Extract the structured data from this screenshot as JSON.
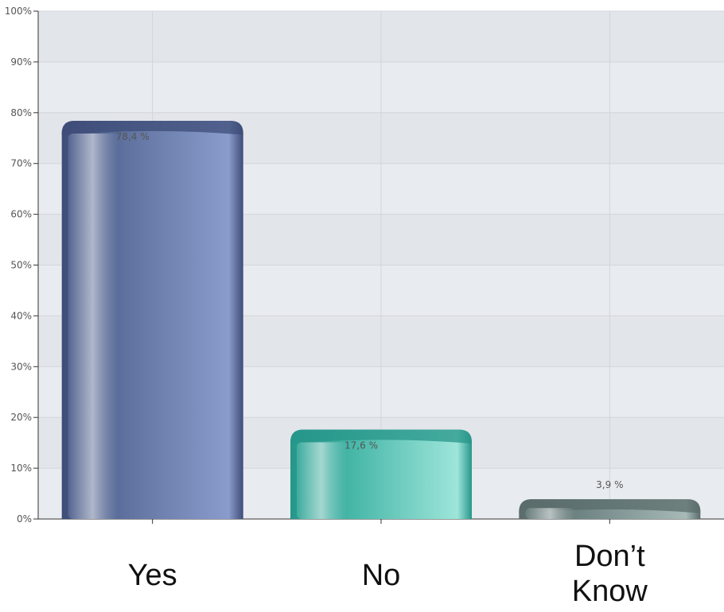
{
  "chart_data": {
    "type": "bar",
    "categories": [
      "Yes",
      "No",
      "Don’t Know"
    ],
    "values": [
      78.4,
      17.6,
      3.9
    ],
    "value_labels": [
      "78,4 %",
      "17,6 %",
      "3,9 %"
    ],
    "ylim": [
      0,
      100
    ],
    "yticks": [
      0,
      10,
      20,
      30,
      40,
      50,
      60,
      70,
      80,
      90,
      100
    ],
    "ytick_labels": [
      "0%",
      "10%",
      "20%",
      "30%",
      "40%",
      "50%",
      "60%",
      "70%",
      "80%",
      "90%",
      "100%"
    ],
    "grid": true,
    "title": "",
    "xlabel": "",
    "ylabel": "",
    "colors": {
      "Yes": {
        "dark": "#3e4c78",
        "mid": "#5f729f",
        "light": "#8a9ccc"
      },
      "No": {
        "dark": "#27968a",
        "mid": "#48b8a9",
        "light": "#9ee5da"
      },
      "Don’t Know": {
        "dark": "#5a6c6b",
        "mid": "#6f8584",
        "light": "#a7bab8"
      }
    },
    "plot_background": "#e8ebef"
  }
}
